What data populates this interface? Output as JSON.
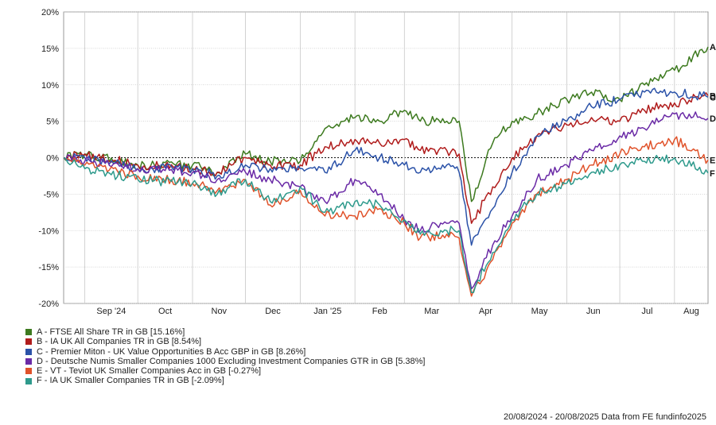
{
  "chart_data": {
    "type": "line",
    "yticks": [
      "20%",
      "15%",
      "10%",
      "5%",
      "0%",
      "-5%",
      "-10%",
      "-15%",
      "-20%"
    ],
    "ylim": [
      -20,
      20
    ],
    "xticks": [
      "Sep '24",
      "Oct",
      "Nov",
      "Dec",
      "Jan '25",
      "Feb",
      "Mar",
      "Apr",
      "May",
      "Jun",
      "Jul",
      "Aug"
    ],
    "grid": true,
    "zero_line": "dotted",
    "legend_position": "bottom-left",
    "footer_range": "20/08/2024 - 20/08/2025",
    "footer_source": "Data from FE fundinfo2025",
    "series": [
      {
        "name": "A - FTSE All Share TR in GB [15.16%]",
        "label": "A",
        "color": "#3d7a1f",
        "x": [
          "2024-08-20",
          "2024-09-01",
          "2024-10-01",
          "2024-11-01",
          "2024-11-15",
          "2024-12-01",
          "2024-12-15",
          "2025-01-01",
          "2025-01-15",
          "2025-02-01",
          "2025-02-15",
          "2025-03-01",
          "2025-03-10",
          "2025-03-25",
          "2025-04-01",
          "2025-04-08",
          "2025-04-20",
          "2025-05-01",
          "2025-05-15",
          "2025-06-01",
          "2025-06-15",
          "2025-07-01",
          "2025-07-15",
          "2025-08-01",
          "2025-08-20"
        ],
        "values": [
          0,
          0.5,
          -1,
          -1,
          -2,
          0.5,
          -0.5,
          -0.5,
          4,
          5.5,
          5,
          6.5,
          5,
          5,
          5,
          -6,
          2,
          5,
          6,
          8,
          9,
          8,
          10,
          12,
          15.2
        ]
      },
      {
        "name": "B - IA UK All Companies TR in GB [8.54%]",
        "label": "B",
        "color": "#b01c1c",
        "x": [
          "2024-08-20",
          "2024-09-01",
          "2024-10-01",
          "2024-11-01",
          "2024-11-15",
          "2024-12-01",
          "2024-12-15",
          "2025-01-01",
          "2025-01-15",
          "2025-02-01",
          "2025-02-15",
          "2025-03-01",
          "2025-03-10",
          "2025-03-25",
          "2025-04-01",
          "2025-04-08",
          "2025-04-20",
          "2025-05-01",
          "2025-05-15",
          "2025-06-01",
          "2025-06-15",
          "2025-07-01",
          "2025-07-15",
          "2025-08-01",
          "2025-08-20"
        ],
        "values": [
          0,
          0.5,
          -1,
          -1.5,
          -2,
          0,
          -1,
          -1,
          1.5,
          2.5,
          2,
          2.5,
          1,
          1,
          0.5,
          -9,
          -4,
          0,
          3,
          4.5,
          5.5,
          5,
          6.5,
          7.5,
          8.5
        ]
      },
      {
        "name": "C - Premier Miton - UK Value Opportunities B Acc GBP in GB [8.26%]",
        "label": "C",
        "color": "#2b52a8",
        "x": [
          "2024-08-20",
          "2024-09-01",
          "2024-10-01",
          "2024-11-01",
          "2024-11-15",
          "2024-12-01",
          "2024-12-15",
          "2025-01-01",
          "2025-01-15",
          "2025-02-01",
          "2025-02-15",
          "2025-03-01",
          "2025-03-10",
          "2025-03-25",
          "2025-04-01",
          "2025-04-08",
          "2025-04-20",
          "2025-05-01",
          "2025-05-15",
          "2025-06-01",
          "2025-06-15",
          "2025-07-01",
          "2025-07-15",
          "2025-08-01",
          "2025-08-20"
        ],
        "values": [
          0,
          0,
          -1.5,
          -1.5,
          -2.5,
          -1,
          -1.5,
          -1.5,
          -2,
          1,
          0,
          -1,
          -2,
          -1,
          -2,
          -12,
          -7,
          -2,
          3,
          5,
          7,
          8,
          9,
          9,
          8.3
        ]
      },
      {
        "name": "D - Deutsche Numis Smaller Companies 1000 Excluding Investment Companies GTR in GB [5.38%]",
        "label": "D",
        "color": "#6a2aa6",
        "x": [
          "2024-08-20",
          "2024-09-01",
          "2024-10-01",
          "2024-11-01",
          "2024-11-15",
          "2024-12-01",
          "2024-12-15",
          "2025-01-01",
          "2025-01-15",
          "2025-02-01",
          "2025-02-15",
          "2025-03-01",
          "2025-03-10",
          "2025-03-25",
          "2025-04-01",
          "2025-04-08",
          "2025-04-20",
          "2025-05-01",
          "2025-05-15",
          "2025-06-01",
          "2025-06-15",
          "2025-07-01",
          "2025-07-15",
          "2025-08-01",
          "2025-08-20"
        ],
        "values": [
          0,
          -0.5,
          -1.5,
          -2,
          -3,
          -2,
          -3,
          -4,
          -6,
          -3,
          -5,
          -8.5,
          -10,
          -9,
          -9,
          -18,
          -12,
          -8,
          -3,
          -1,
          1,
          3,
          4,
          6,
          5.4
        ]
      },
      {
        "name": "E - VT - Teviot UK Smaller Companies Acc in GB [-0.27%]",
        "label": "E",
        "color": "#e0522a",
        "x": [
          "2024-08-20",
          "2024-09-01",
          "2024-10-01",
          "2024-11-01",
          "2024-11-15",
          "2024-12-01",
          "2024-12-15",
          "2025-01-01",
          "2025-01-15",
          "2025-02-01",
          "2025-02-15",
          "2025-03-01",
          "2025-03-10",
          "2025-03-25",
          "2025-04-01",
          "2025-04-08",
          "2025-04-20",
          "2025-05-01",
          "2025-05-15",
          "2025-06-01",
          "2025-06-15",
          "2025-07-01",
          "2025-07-15",
          "2025-08-01",
          "2025-08-20"
        ],
        "values": [
          0,
          -1,
          -2.5,
          -3.5,
          -4.5,
          -3,
          -6.5,
          -4.5,
          -8,
          -8,
          -7,
          -9,
          -11,
          -10.5,
          -11,
          -19,
          -14,
          -9,
          -5,
          -3,
          -1,
          0.5,
          1.5,
          2.5,
          -0.3
        ]
      },
      {
        "name": "F - IA UK Smaller Companies TR in GB [-2.09%]",
        "label": "F",
        "color": "#2e9a8c",
        "x": [
          "2024-08-20",
          "2024-09-01",
          "2024-10-01",
          "2024-11-01",
          "2024-11-15",
          "2024-12-01",
          "2024-12-15",
          "2025-01-01",
          "2025-01-15",
          "2025-02-01",
          "2025-02-15",
          "2025-03-01",
          "2025-03-10",
          "2025-03-25",
          "2025-04-01",
          "2025-04-08",
          "2025-04-20",
          "2025-05-01",
          "2025-05-15",
          "2025-06-01",
          "2025-06-15",
          "2025-07-01",
          "2025-07-15",
          "2025-08-01",
          "2025-08-20"
        ],
        "values": [
          0,
          -1.5,
          -3,
          -3.5,
          -5,
          -3,
          -6,
          -4,
          -7.5,
          -6,
          -6.5,
          -8.5,
          -10.5,
          -10,
          -10,
          -18.5,
          -13,
          -8.5,
          -5,
          -3.5,
          -2,
          -1,
          -0.5,
          0,
          -2.1
        ]
      }
    ]
  }
}
